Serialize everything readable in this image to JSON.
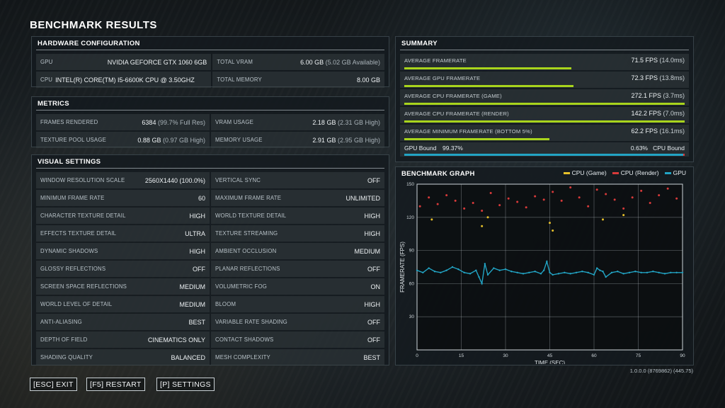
{
  "title": "BENCHMARK RESULTS",
  "hardware": {
    "title": "HARDWARE CONFIGURATION",
    "gpu_label": "GPU",
    "gpu_value": "NVIDIA GEFORCE GTX 1060 6GB",
    "vram_label": "TOTAL VRAM",
    "vram_value": "6.00 GB",
    "vram_sub": "(5.02 GB Available)",
    "cpu_label": "CPU",
    "cpu_value": "INTEL(R) CORE(TM) I5-6600K CPU @ 3.50GHZ",
    "mem_label": "TOTAL MEMORY",
    "mem_value": "8.00 GB"
  },
  "metrics": {
    "title": "METRICS",
    "frames_label": "FRAMES RENDERED",
    "frames_value": "6384",
    "frames_sub": "(99.7% Full Res)",
    "vram_label": "VRAM USAGE",
    "vram_value": "2.18 GB",
    "vram_sub": "(2.31 GB High)",
    "pool_label": "TEXTURE POOL USAGE",
    "pool_value": "0.88 GB",
    "pool_sub": "(0.97 GB High)",
    "mem_label": "MEMORY USAGE",
    "mem_value": "2.91 GB",
    "mem_sub": "(2.95 GB High)"
  },
  "visual": {
    "title": "VISUAL SETTINGS",
    "rows": [
      [
        {
          "label": "WINDOW RESOLUTION SCALE",
          "value": "2560X1440 (100.0%)"
        },
        {
          "label": "VERTICAL SYNC",
          "value": "OFF"
        }
      ],
      [
        {
          "label": "MINIMUM FRAME RATE",
          "value": "60"
        },
        {
          "label": "MAXIMUM FRAME RATE",
          "value": "UNLIMITED"
        }
      ],
      [
        {
          "label": "CHARACTER TEXTURE DETAIL",
          "value": "HIGH"
        },
        {
          "label": "WORLD TEXTURE DETAIL",
          "value": "HIGH"
        }
      ],
      [
        {
          "label": "EFFECTS TEXTURE DETAIL",
          "value": "ULTRA"
        },
        {
          "label": "TEXTURE STREAMING",
          "value": "HIGH"
        }
      ],
      [
        {
          "label": "DYNAMIC SHADOWS",
          "value": "HIGH"
        },
        {
          "label": "AMBIENT OCCLUSION",
          "value": "MEDIUM"
        }
      ],
      [
        {
          "label": "GLOSSY REFLECTIONS",
          "value": "OFF"
        },
        {
          "label": "PLANAR REFLECTIONS",
          "value": "OFF"
        }
      ],
      [
        {
          "label": "SCREEN SPACE REFLECTIONS",
          "value": "MEDIUM"
        },
        {
          "label": "VOLUMETRIC FOG",
          "value": "ON"
        }
      ],
      [
        {
          "label": "WORLD LEVEL OF DETAIL",
          "value": "MEDIUM"
        },
        {
          "label": "BLOOM",
          "value": "HIGH"
        }
      ],
      [
        {
          "label": "ANTI-ALIASING",
          "value": "BEST"
        },
        {
          "label": "VARIABLE RATE SHADING",
          "value": "OFF"
        }
      ],
      [
        {
          "label": "DEPTH OF FIELD",
          "value": "CINEMATICS ONLY"
        },
        {
          "label": "CONTACT SHADOWS",
          "value": "OFF"
        }
      ],
      [
        {
          "label": "SHADING QUALITY",
          "value": "BALANCED"
        },
        {
          "label": "MESH COMPLEXITY",
          "value": "BEST"
        }
      ]
    ]
  },
  "summary": {
    "title": "SUMMARY",
    "rows": [
      {
        "label": "AVERAGE FRAMERATE",
        "value": "71.5 FPS",
        "sub": "(14.0ms)",
        "fps": 71.5
      },
      {
        "label": "AVERAGE GPU FRAMERATE",
        "value": "72.3 FPS",
        "sub": "(13.8ms)",
        "fps": 72.3
      },
      {
        "label": "AVERAGE CPU FRAMERATE (GAME)",
        "value": "272.1 FPS",
        "sub": "(3.7ms)",
        "fps": 272.1
      },
      {
        "label": "AVERAGE CPU FRAMERATE (RENDER)",
        "value": "142.2 FPS",
        "sub": "(7.0ms)",
        "fps": 142.2
      },
      {
        "label": "AVERAGE MINIMUM FRAMERATE (BOTTOM 5%)",
        "value": "62.2 FPS",
        "sub": "(16.1ms)",
        "fps": 62.2
      }
    ],
    "bar_max_fps": 120,
    "gpu_bound_label": "GPU Bound",
    "gpu_bound_value": "99.37%",
    "gpu_bound_fraction": 0.9937,
    "cpu_bound_value": "0.63%",
    "cpu_bound_label": "CPU Bound",
    "bar_color": "#a8d41c",
    "gpu_color": "#22a4c4",
    "cpu_color": "#d83a3a"
  },
  "graph": {
    "title": "BENCHMARK GRAPH",
    "legend": [
      "CPU (Game)",
      "CPU (Render)",
      "GPU"
    ],
    "legend_colors": [
      "#e6c02a",
      "#d83a3a",
      "#22a4c4"
    ]
  },
  "chart_data": {
    "type": "scatter",
    "xlabel": "TIME (SEC)",
    "ylabel": "FRAMERATE (FPS)",
    "xlim": [
      0,
      90
    ],
    "ylim": [
      0,
      150
    ],
    "xticks": [
      0,
      15,
      30,
      45,
      60,
      75,
      90
    ],
    "yticks": [
      30,
      60,
      90,
      120,
      150
    ],
    "grid": true,
    "series": [
      {
        "name": "GPU",
        "color": "#22a4c4",
        "x": [
          0,
          2,
          4,
          6,
          8,
          10,
          12,
          14,
          16,
          18,
          20,
          21,
          22,
          23,
          24,
          26,
          28,
          30,
          32,
          34,
          36,
          38,
          40,
          42,
          43,
          44,
          45,
          46,
          48,
          50,
          52,
          54,
          56,
          58,
          60,
          61,
          62,
          63,
          64,
          66,
          68,
          70,
          72,
          74,
          76,
          78,
          80,
          82,
          84,
          86,
          88,
          90
        ],
        "y": [
          72,
          70,
          74,
          71,
          70,
          72,
          75,
          73,
          70,
          69,
          72,
          66,
          60,
          78,
          68,
          74,
          72,
          73,
          71,
          70,
          69,
          70,
          71,
          69,
          72,
          80,
          70,
          68,
          69,
          70,
          69,
          70,
          71,
          70,
          68,
          74,
          72,
          71,
          66,
          70,
          71,
          69,
          70,
          71,
          70,
          70,
          71,
          70,
          69,
          70,
          70,
          70
        ]
      },
      {
        "name": "CPU (Render)",
        "color": "#d83a3a",
        "x": [
          1,
          4,
          7,
          10,
          13,
          16,
          19,
          22,
          25,
          28,
          31,
          34,
          37,
          40,
          43,
          46,
          49,
          52,
          55,
          58,
          61,
          64,
          67,
          70,
          73,
          76,
          79,
          82,
          85,
          88
        ],
        "y": [
          130,
          138,
          132,
          140,
          135,
          128,
          133,
          126,
          142,
          131,
          137,
          134,
          129,
          139,
          136,
          143,
          135,
          147,
          138,
          130,
          145,
          141,
          136,
          128,
          138,
          144,
          133,
          140,
          146,
          137
        ]
      },
      {
        "name": "CPU (Game)",
        "color": "#e6c02a",
        "x": [
          5,
          22,
          24,
          45,
          46,
          63,
          70
        ],
        "y": [
          118,
          112,
          120,
          115,
          108,
          118,
          122
        ]
      }
    ]
  },
  "version": "1.0.0.0 (8769862) (445.75)",
  "buttons": {
    "exit": "[ESC] EXIT",
    "restart": "[F5] RESTART",
    "settings": "[P] SETTINGS"
  }
}
